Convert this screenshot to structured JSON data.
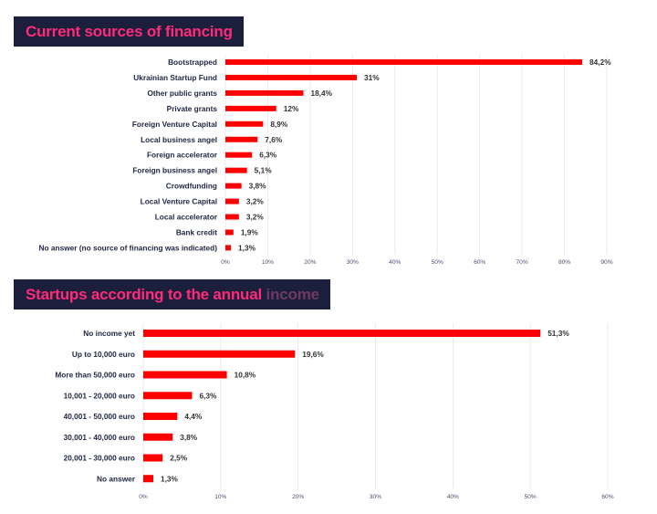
{
  "chart_data": [
    {
      "type": "bar",
      "orientation": "horizontal",
      "title": "Current sources of financing",
      "categories": [
        "Bootstrapped",
        "Ukrainian Startup Fund",
        "Other public grants",
        "Private grants",
        "Foreign Venture Capital",
        "Local business angel",
        "Foreign accelerator",
        "Foreign business angel",
        "Crowdfunding",
        "Local Venture Capital",
        "Local accelerator",
        "Bank credit",
        "No answer (no source of financing was indicated)"
      ],
      "values": [
        84.2,
        31,
        18.4,
        12,
        8.9,
        7.6,
        6.3,
        5.1,
        3.8,
        3.2,
        3.2,
        1.9,
        1.3
      ],
      "value_labels": [
        "84,2%",
        "31%",
        "18,4%",
        "12%",
        "8,9%",
        "7,6%",
        "6,3%",
        "5,1%",
        "3,8%",
        "3,2%",
        "3,2%",
        "1,9%",
        "1,3%"
      ],
      "x_ticks": [
        "0%",
        "10%",
        "20%",
        "30%",
        "40%",
        "50%",
        "60%",
        "70%",
        "80%",
        "90%"
      ],
      "xlim": [
        0,
        90
      ],
      "color": "#ff0000"
    },
    {
      "type": "bar",
      "orientation": "horizontal",
      "title": "Startups according to the annual income",
      "categories": [
        "No income yet",
        "Up to 10,000 euro",
        "More than 50,000 euro",
        "10,001 - 20,000 euro",
        "40,001 - 50,000 euro",
        "30,001 - 40,000 euro",
        "20,001 - 30,000 euro",
        "No answer"
      ],
      "values": [
        51.3,
        19.6,
        10.8,
        6.3,
        4.4,
        3.8,
        2.5,
        1.3
      ],
      "value_labels": [
        "51,3%",
        "19,6%",
        "10,8%",
        "6,3%",
        "4,4%",
        "3,8%",
        "2,5%",
        "1,3%"
      ],
      "x_ticks": [
        "0%",
        "10%",
        "20%",
        "30%",
        "40%",
        "50%",
        "60%"
      ],
      "xlim": [
        0,
        60
      ],
      "color": "#ff0000"
    }
  ],
  "banner1": {
    "title": "Current sources of financing"
  },
  "banner2": {
    "title_main": "Startups according to the annual ",
    "title_muted": "income"
  }
}
